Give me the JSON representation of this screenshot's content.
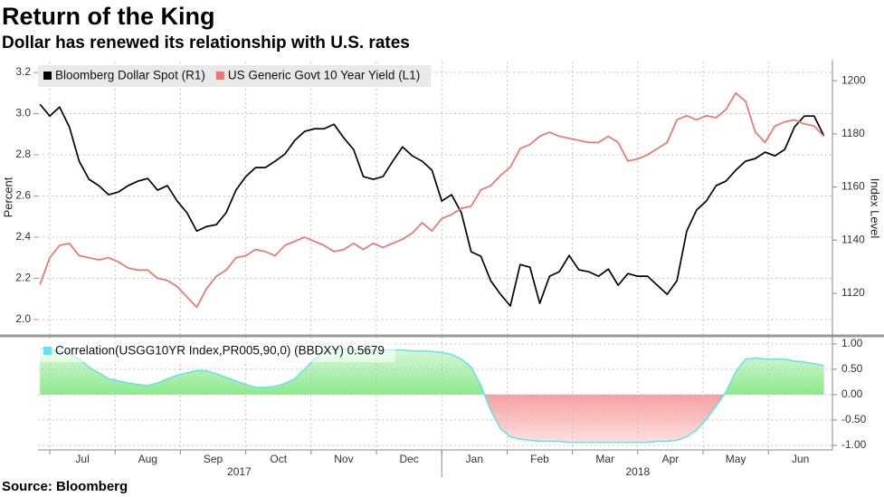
{
  "chart_data": [
    {
      "type": "line",
      "title": "Return of the King",
      "subtitle": "Dollar has renewed its relationship with U.S. rates",
      "source": "Source: Bloomberg",
      "ylabel": "Percent",
      "y2label": "Index Level",
      "x": [
        -0.15,
        0,
        0.15,
        0.3,
        0.45,
        0.6,
        0.75,
        0.9,
        1.05,
        1.2,
        1.35,
        1.5,
        1.65,
        1.8,
        1.95,
        2.1,
        2.25,
        2.4,
        2.55,
        2.7,
        2.85,
        3,
        3.15,
        3.3,
        3.45,
        3.6,
        3.75,
        3.9,
        4.05,
        4.2,
        4.35,
        4.5,
        4.65,
        4.8,
        4.95,
        5.1,
        5.25,
        5.4,
        5.55,
        5.7,
        5.85,
        6,
        6.15,
        6.3,
        6.45,
        6.6,
        6.75,
        6.9,
        7.05,
        7.2,
        7.35,
        7.5,
        7.65,
        7.8,
        7.95,
        8.1,
        8.25,
        8.4,
        8.55,
        8.7,
        8.85,
        9,
        9.15,
        9.3,
        9.45,
        9.6,
        9.75,
        9.9,
        10.05,
        10.2,
        10.35,
        10.5,
        10.65,
        10.8,
        10.95,
        11.1,
        11.25,
        11.4,
        11.55,
        11.7,
        11.85
      ],
      "xlim": [
        -0.18,
        11.98
      ],
      "xticks": [
        0,
        1,
        2,
        3,
        4,
        5,
        6,
        7,
        8,
        9,
        10,
        11
      ],
      "ylim": [
        1.925,
        3.253
      ],
      "yticks": [
        {
          "value": 2,
          "label": "2.0"
        },
        2.2,
        2.4,
        2.6,
        2.8,
        {
          "value": 3,
          "label": "3.0"
        },
        3.2
      ],
      "y2lim": [
        1104.3,
        1207.2
      ],
      "y2ticks": [
        1120,
        1140,
        1160,
        1180,
        1200
      ],
      "grid": true,
      "series": [
        {
          "name": "Bloomberg Dollar Spot (R1)",
          "color": "#000000",
          "axis": "y2",
          "values": [
            1191.1,
            1186.7,
            1190.1,
            1182.6,
            1169.7,
            1162.9,
            1160.5,
            1157.1,
            1158.1,
            1160.5,
            1162.2,
            1163.2,
            1158.8,
            1160.5,
            1154.7,
            1150.3,
            1143.4,
            1145.1,
            1145.8,
            1150.3,
            1158.8,
            1163.9,
            1167.3,
            1167.3,
            1169.7,
            1172.4,
            1177.5,
            1180.9,
            1181.9,
            1181.9,
            1183.6,
            1178.5,
            1174.1,
            1163.9,
            1162.9,
            1163.9,
            1169.7,
            1175.1,
            1171.7,
            1169.7,
            1166.3,
            1154.7,
            1157.1,
            1150.3,
            1135.6,
            1133.9,
            1124.7,
            1119.6,
            1115.2,
            1130.8,
            1129.8,
            1116.2,
            1126.4,
            1128.1,
            1134.2,
            1128.8,
            1128.1,
            1126.4,
            1129.1,
            1123.0,
            1127.4,
            1126.4,
            1126.4,
            1123.0,
            1119.6,
            1124.7,
            1143.4,
            1151.3,
            1154.7,
            1160.5,
            1162.2,
            1166.3,
            1169.7,
            1170.7,
            1173.1,
            1171.7,
            1174.1,
            1182.6,
            1186.7,
            1186.7,
            1179.2
          ]
        },
        {
          "name": "US Generic Govt 10 Year Yield  (L1)",
          "color": "#f2736d",
          "values": [
            2.17,
            2.3,
            2.36,
            2.37,
            2.31,
            2.3,
            2.29,
            2.3,
            2.28,
            2.25,
            2.24,
            2.24,
            2.2,
            2.19,
            2.16,
            2.11,
            2.06,
            2.15,
            2.21,
            2.24,
            2.3,
            2.31,
            2.34,
            2.33,
            2.31,
            2.36,
            2.38,
            2.4,
            2.38,
            2.36,
            2.33,
            2.34,
            2.37,
            2.34,
            2.37,
            2.35,
            2.37,
            2.39,
            2.42,
            2.47,
            2.43,
            2.49,
            2.51,
            2.54,
            2.55,
            2.63,
            2.65,
            2.7,
            2.74,
            2.83,
            2.85,
            2.89,
            2.91,
            2.89,
            2.88,
            2.87,
            2.86,
            2.86,
            2.89,
            2.86,
            2.77,
            2.78,
            2.8,
            2.83,
            2.86,
            2.97,
            2.99,
            2.97,
            2.99,
            2.98,
            3.02,
            3.1,
            3.06,
            2.91,
            2.86,
            2.94,
            2.96,
            2.97,
            2.95,
            2.94,
            2.89
          ]
        }
      ]
    },
    {
      "type": "area",
      "x": [
        -0.15,
        0,
        0.15,
        0.3,
        0.45,
        0.6,
        0.75,
        0.9,
        1.05,
        1.2,
        1.35,
        1.5,
        1.65,
        1.8,
        1.95,
        2.1,
        2.25,
        2.4,
        2.55,
        2.7,
        2.85,
        3,
        3.15,
        3.3,
        3.45,
        3.6,
        3.75,
        3.9,
        4.05,
        4.2,
        4.35,
        4.5,
        4.65,
        4.8,
        4.95,
        5.1,
        5.25,
        5.4,
        5.55,
        5.7,
        5.85,
        6,
        6.15,
        6.3,
        6.45,
        6.6,
        6.75,
        6.9,
        7.05,
        7.2,
        7.35,
        7.5,
        7.65,
        7.8,
        7.95,
        8.1,
        8.25,
        8.4,
        8.55,
        8.7,
        8.85,
        9,
        9.15,
        9.3,
        9.45,
        9.6,
        9.75,
        9.9,
        10.05,
        10.2,
        10.35,
        10.5,
        10.65,
        10.8,
        10.95,
        11.1,
        11.25,
        11.4,
        11.55,
        11.7,
        11.85
      ],
      "xlim": [
        -0.18,
        11.98
      ],
      "xticks": [
        {
          "value": 0,
          "label": "Jul"
        },
        {
          "value": 1,
          "label": "Aug"
        },
        {
          "value": 2,
          "label": "Sep"
        },
        {
          "value": 3,
          "label": "Oct"
        },
        {
          "value": 4,
          "label": "Nov"
        },
        {
          "value": 5,
          "label": "Dec"
        },
        {
          "value": 6,
          "label": "Jan"
        },
        {
          "value": 7,
          "label": "Feb"
        },
        {
          "value": 8,
          "label": "Mar"
        },
        {
          "value": 9,
          "label": "Apr"
        },
        {
          "value": 10,
          "label": "May"
        },
        {
          "value": 11,
          "label": "Jun"
        }
      ],
      "year_boundaries": [
        6
      ],
      "year_labels": [
        {
          "value": 2.9,
          "label": "2017"
        },
        {
          "value": 9,
          "label": "2018"
        }
      ],
      "ylim": [
        -1.09,
        1.14
      ],
      "yticks": [
        {
          "value": -1,
          "label": "-1.00"
        },
        {
          "value": -0.5,
          "label": "-0.50"
        },
        {
          "value": 0,
          "label": "0.00"
        },
        {
          "value": 0.5,
          "label": "0.50"
        },
        {
          "value": 1,
          "label": "1.00"
        }
      ],
      "y_axis_side": "right",
      "grid": true,
      "series": [
        {
          "name": "Correlation(USGG10YR Index,PR005,90,0) (BBDXY) 0.5679",
          "color": "#5fe3f0",
          "positive_color": "#3fdc3f",
          "negative_color": "#f06262",
          "values": [
            0.92,
            0.88,
            0.86,
            0.81,
            0.7,
            0.54,
            0.43,
            0.31,
            0.27,
            0.23,
            0.2,
            0.18,
            0.23,
            0.31,
            0.38,
            0.43,
            0.47,
            0.47,
            0.41,
            0.34,
            0.27,
            0.2,
            0.14,
            0.14,
            0.16,
            0.22,
            0.31,
            0.5,
            0.7,
            0.86,
            0.9,
            0.9,
            0.88,
            0.88,
            0.88,
            0.88,
            0.88,
            0.88,
            0.86,
            0.86,
            0.85,
            0.83,
            0.79,
            0.7,
            0.54,
            0.18,
            -0.31,
            -0.67,
            -0.83,
            -0.88,
            -0.9,
            -0.92,
            -0.92,
            -0.92,
            -0.94,
            -0.94,
            -0.94,
            -0.94,
            -0.94,
            -0.94,
            -0.94,
            -0.94,
            -0.94,
            -0.92,
            -0.92,
            -0.9,
            -0.83,
            -0.7,
            -0.49,
            -0.23,
            0.05,
            0.45,
            0.7,
            0.72,
            0.7,
            0.7,
            0.7,
            0.66,
            0.64,
            0.61,
            0.57
          ]
        }
      ]
    }
  ]
}
